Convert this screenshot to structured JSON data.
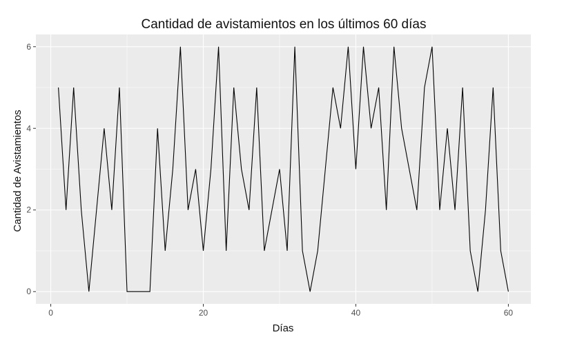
{
  "chart_data": {
    "type": "line",
    "title": "Cantidad de avistamientos en los últimos 60 días",
    "xlabel": "Días",
    "ylabel": "Cantidad de Avistamientos",
    "xlim": [
      -1.95,
      62.95
    ],
    "ylim": [
      -0.3,
      6.3
    ],
    "x_ticks": [
      0,
      20,
      40,
      60
    ],
    "y_ticks": [
      0,
      2,
      4,
      6
    ],
    "x_tick_labels": [
      "0",
      "20",
      "40",
      "60"
    ],
    "y_tick_labels": [
      "0",
      "2",
      "4",
      "6"
    ],
    "grid": true,
    "background": "#ebebeb",
    "grid_major_color": "#ffffff",
    "line_color": "#000000",
    "x": [
      1,
      2,
      3,
      4,
      5,
      6,
      7,
      8,
      9,
      10,
      11,
      12,
      13,
      14,
      15,
      16,
      17,
      18,
      19,
      20,
      21,
      22,
      23,
      24,
      25,
      26,
      27,
      28,
      29,
      30,
      31,
      32,
      33,
      34,
      35,
      36,
      37,
      38,
      39,
      40,
      41,
      42,
      43,
      44,
      45,
      46,
      47,
      48,
      49,
      50,
      51,
      52,
      53,
      54,
      55,
      56,
      57,
      58,
      59,
      60
    ],
    "values": [
      5,
      2,
      5,
      2,
      0,
      2,
      4,
      2,
      5,
      0,
      0,
      0,
      0,
      4,
      1,
      3,
      6,
      2,
      3,
      1,
      3,
      6,
      1,
      5,
      3,
      2,
      5,
      1,
      2,
      3,
      1,
      6,
      1,
      0,
      1,
      3,
      5,
      4,
      6,
      3,
      6,
      4,
      5,
      2,
      6,
      4,
      3,
      2,
      5,
      6,
      2,
      4,
      2,
      5,
      1,
      0,
      2,
      5,
      1,
      0
    ]
  }
}
